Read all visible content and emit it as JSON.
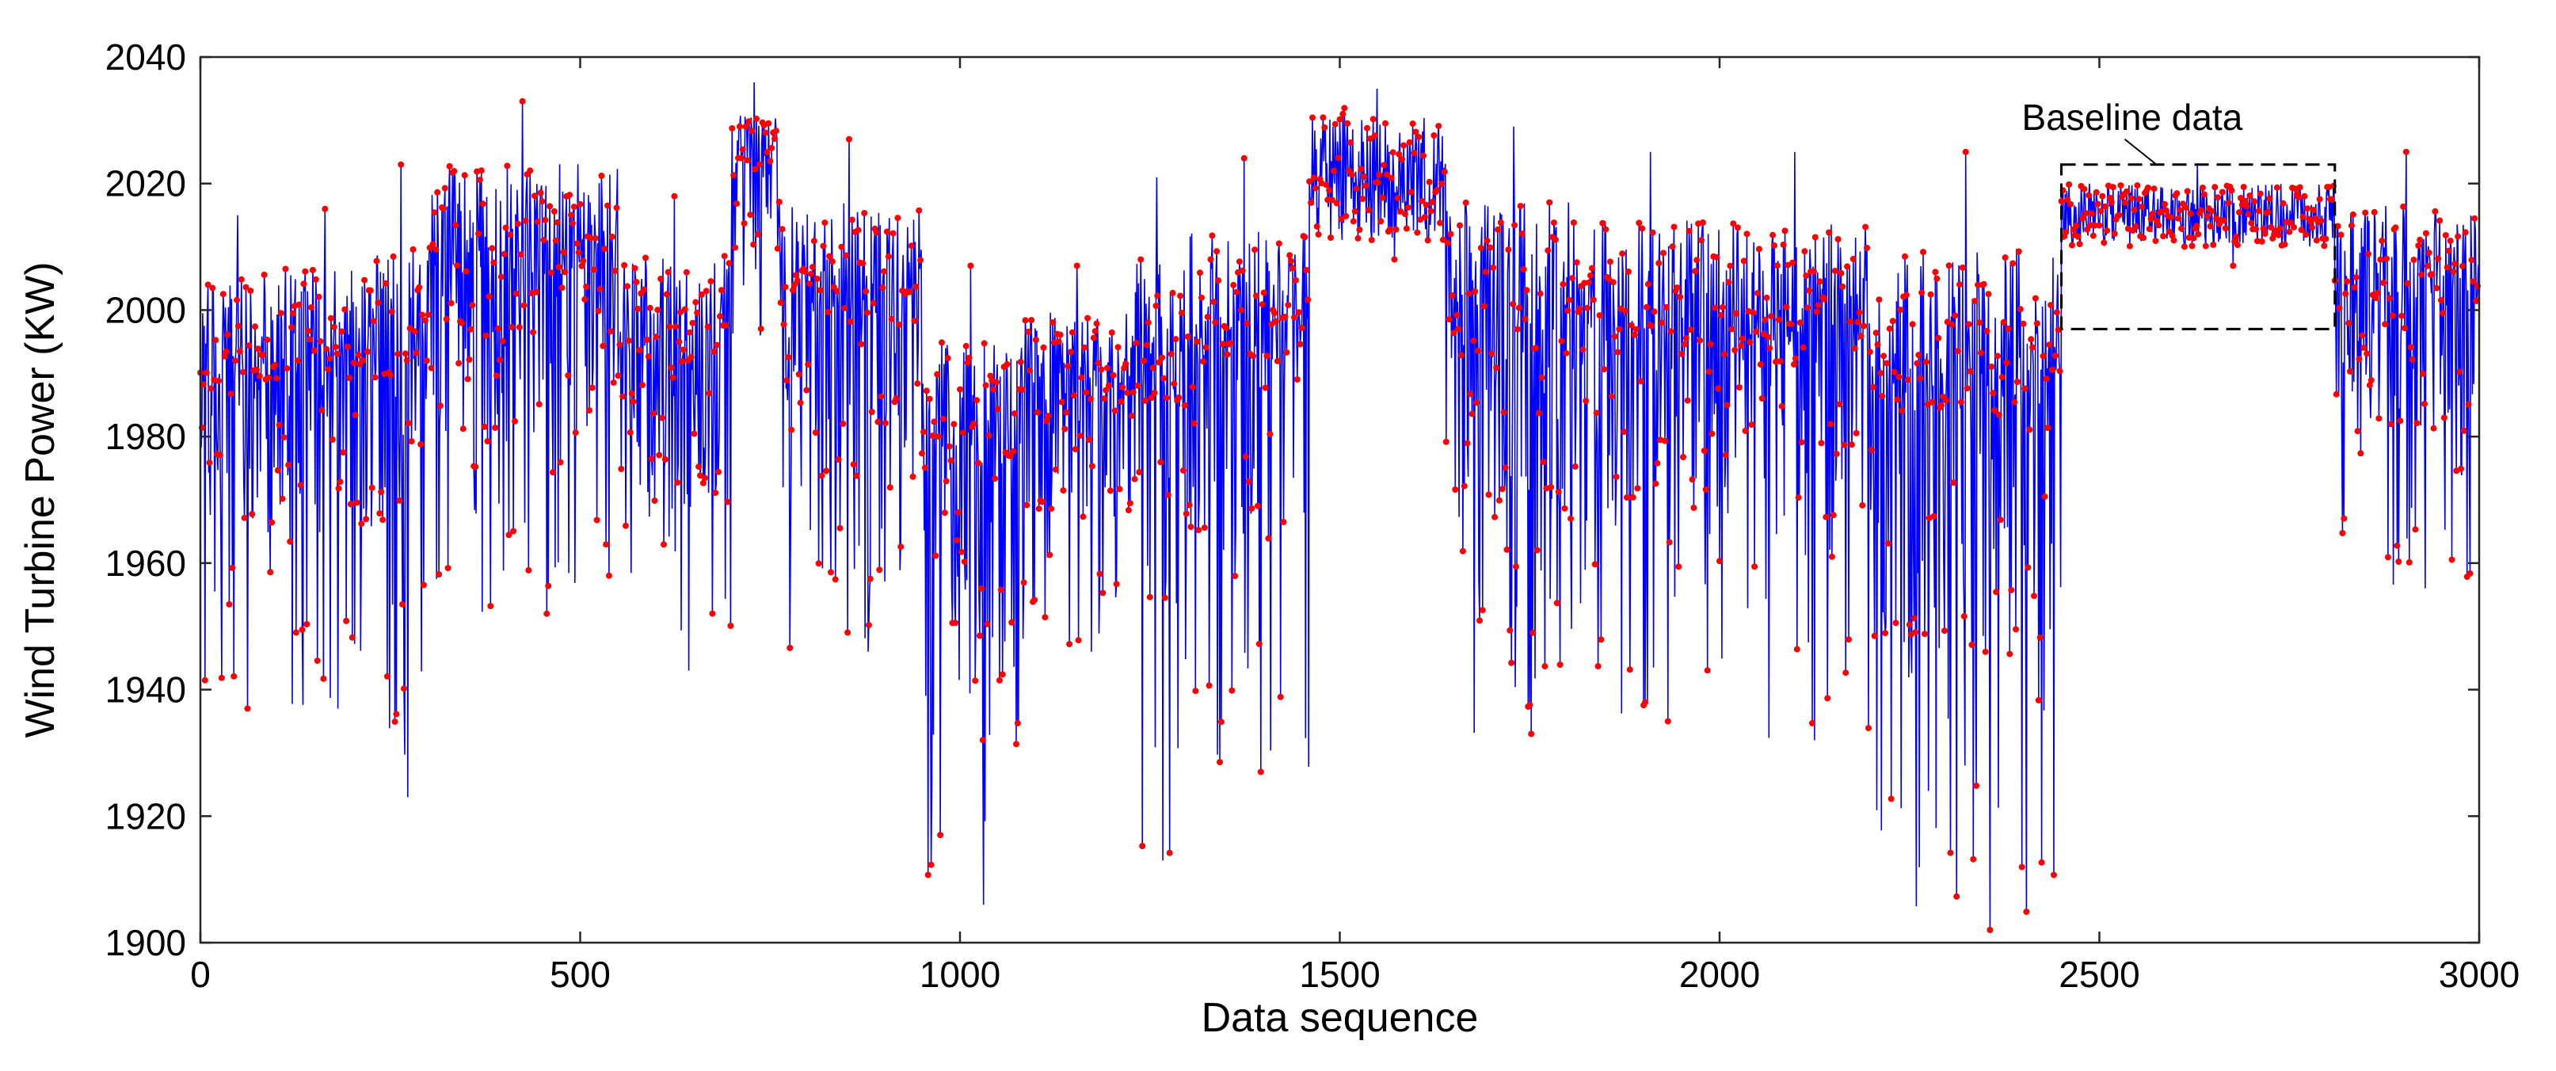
{
  "chart_data": {
    "type": "line",
    "title": "",
    "xlabel": "Data sequence",
    "ylabel": "Wind Turbine Power (KW)",
    "xlim": [
      0,
      3000
    ],
    "ylim": [
      1900,
      2040
    ],
    "xticks": [
      0,
      500,
      1000,
      1500,
      2000,
      2500,
      3000
    ],
    "yticks": [
      1900,
      1920,
      1940,
      1960,
      1980,
      2000,
      2020,
      2040
    ],
    "grid": false,
    "line_color": "#0000ff",
    "marker_color": "#ff0000",
    "n_points": 3000,
    "segment_summary": [
      {
        "x_range": [
          0,
          100
        ],
        "min": 1937,
        "max": 2015
      },
      {
        "x_range": [
          100,
          230
        ],
        "min": 1937,
        "max": 2016
      },
      {
        "x_range": [
          230,
          300
        ],
        "min": 1923,
        "max": 2023
      },
      {
        "x_range": [
          300,
          550
        ],
        "min": 1952,
        "max": 2033
      },
      {
        "x_range": [
          550,
          700
        ],
        "min": 1943,
        "max": 2018
      },
      {
        "x_range": [
          700,
          760
        ],
        "min": 1996,
        "max": 2036
      },
      {
        "x_range": [
          760,
          950
        ],
        "min": 1946,
        "max": 2027
      },
      {
        "x_range": [
          950,
          1080
        ],
        "min": 1906,
        "max": 2007
      },
      {
        "x_range": [
          1080,
          1230
        ],
        "min": 1946,
        "max": 2007
      },
      {
        "x_range": [
          1230,
          1290
        ],
        "min": 1913,
        "max": 2021
      },
      {
        "x_range": [
          1290,
          1460
        ],
        "min": 1927,
        "max": 2024
      },
      {
        "x_range": [
          1460,
          1640
        ],
        "min": 2008,
        "max": 2035
      },
      {
        "x_range": [
          1640,
          1820
        ],
        "min": 1933,
        "max": 2029
      },
      {
        "x_range": [
          1820,
          2000
        ],
        "min": 1935,
        "max": 2025
      },
      {
        "x_range": [
          2000,
          2200
        ],
        "min": 1932,
        "max": 2025
      },
      {
        "x_range": [
          2200,
          2450
        ],
        "min": 1902,
        "max": 2025
      },
      {
        "x_range": [
          2450,
          2810
        ],
        "min": 2007,
        "max": 2023
      },
      {
        "x_range": [
          2810,
          3000
        ],
        "min": 1956,
        "max": 2025
      }
    ],
    "annotations": [
      {
        "text": "Baseline data",
        "x_range": [
          2450,
          2810
        ],
        "y_range": [
          1997,
          2023
        ],
        "style": "dashed-box"
      }
    ]
  }
}
